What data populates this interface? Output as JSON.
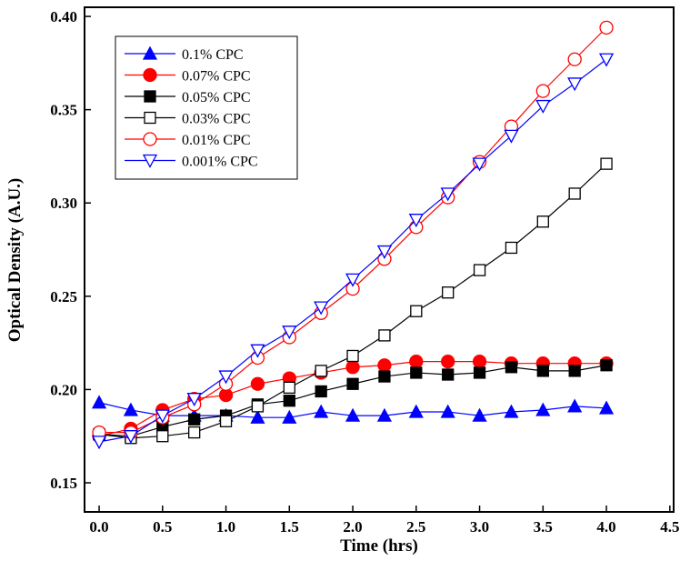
{
  "chart_data": {
    "type": "line",
    "title": "",
    "xlabel": "Time (hrs)",
    "ylabel": "Optical Density (A.U.)",
    "xlim": [
      -0.115,
      4.53
    ],
    "ylim": [
      0.1344,
      0.4049
    ],
    "xticks": [
      "0.0",
      "0.5",
      "1.0",
      "1.5",
      "2.0",
      "2.5",
      "3.0",
      "3.5",
      "4.0",
      "4.5"
    ],
    "yticks": [
      "0.15",
      "0.20",
      "0.25",
      "0.30",
      "0.35",
      "0.40"
    ],
    "legend_position": "top-left",
    "x": [
      0,
      0.25,
      0.5,
      0.75,
      1.0,
      1.25,
      1.5,
      1.75,
      2.0,
      2.25,
      2.5,
      2.75,
      3.0,
      3.25,
      3.5,
      3.75,
      4.0
    ],
    "series": [
      {
        "name": "0.1% CPC",
        "color": "#0000ff",
        "marker": "triangle-filled",
        "values": [
          0.193,
          0.189,
          0.186,
          0.186,
          0.186,
          0.185,
          0.185,
          0.188,
          0.186,
          0.186,
          0.188,
          0.188,
          0.186,
          0.188,
          0.189,
          0.191,
          0.19
        ]
      },
      {
        "name": "0.07% CPC",
        "color": "#ff0000",
        "marker": "circle-filled",
        "values": [
          0.175,
          0.179,
          0.189,
          0.195,
          0.197,
          0.203,
          0.206,
          0.209,
          0.212,
          0.213,
          0.215,
          0.215,
          0.215,
          0.214,
          0.214,
          0.214,
          0.214
        ]
      },
      {
        "name": "0.05% CPC",
        "color": "#000000",
        "marker": "square-filled",
        "values": [
          0.176,
          0.175,
          0.18,
          0.184,
          0.186,
          0.192,
          0.194,
          0.199,
          0.203,
          0.207,
          0.209,
          0.208,
          0.209,
          0.212,
          0.21,
          0.21,
          0.213
        ]
      },
      {
        "name": "0.03% CPC",
        "color": "#000000",
        "marker": "square-open",
        "values": [
          0.176,
          0.174,
          0.175,
          0.177,
          0.183,
          0.191,
          0.201,
          0.21,
          0.218,
          0.229,
          0.242,
          0.252,
          0.264,
          0.276,
          0.29,
          0.305,
          0.321
        ]
      },
      {
        "name": "0.01% CPC",
        "color": "#ff0000",
        "marker": "circle-open",
        "values": [
          0.177,
          0.177,
          0.185,
          0.192,
          0.203,
          0.217,
          0.228,
          0.241,
          0.254,
          0.27,
          0.287,
          0.303,
          0.322,
          0.341,
          0.36,
          0.377,
          0.394
        ]
      },
      {
        "name": "0.001% CPC",
        "color": "#0000ff",
        "marker": "triangle-down-open",
        "values": [
          0.172,
          0.175,
          0.186,
          0.195,
          0.207,
          0.221,
          0.231,
          0.244,
          0.259,
          0.274,
          0.291,
          0.305,
          0.321,
          0.336,
          0.352,
          0.364,
          0.377
        ]
      }
    ]
  }
}
